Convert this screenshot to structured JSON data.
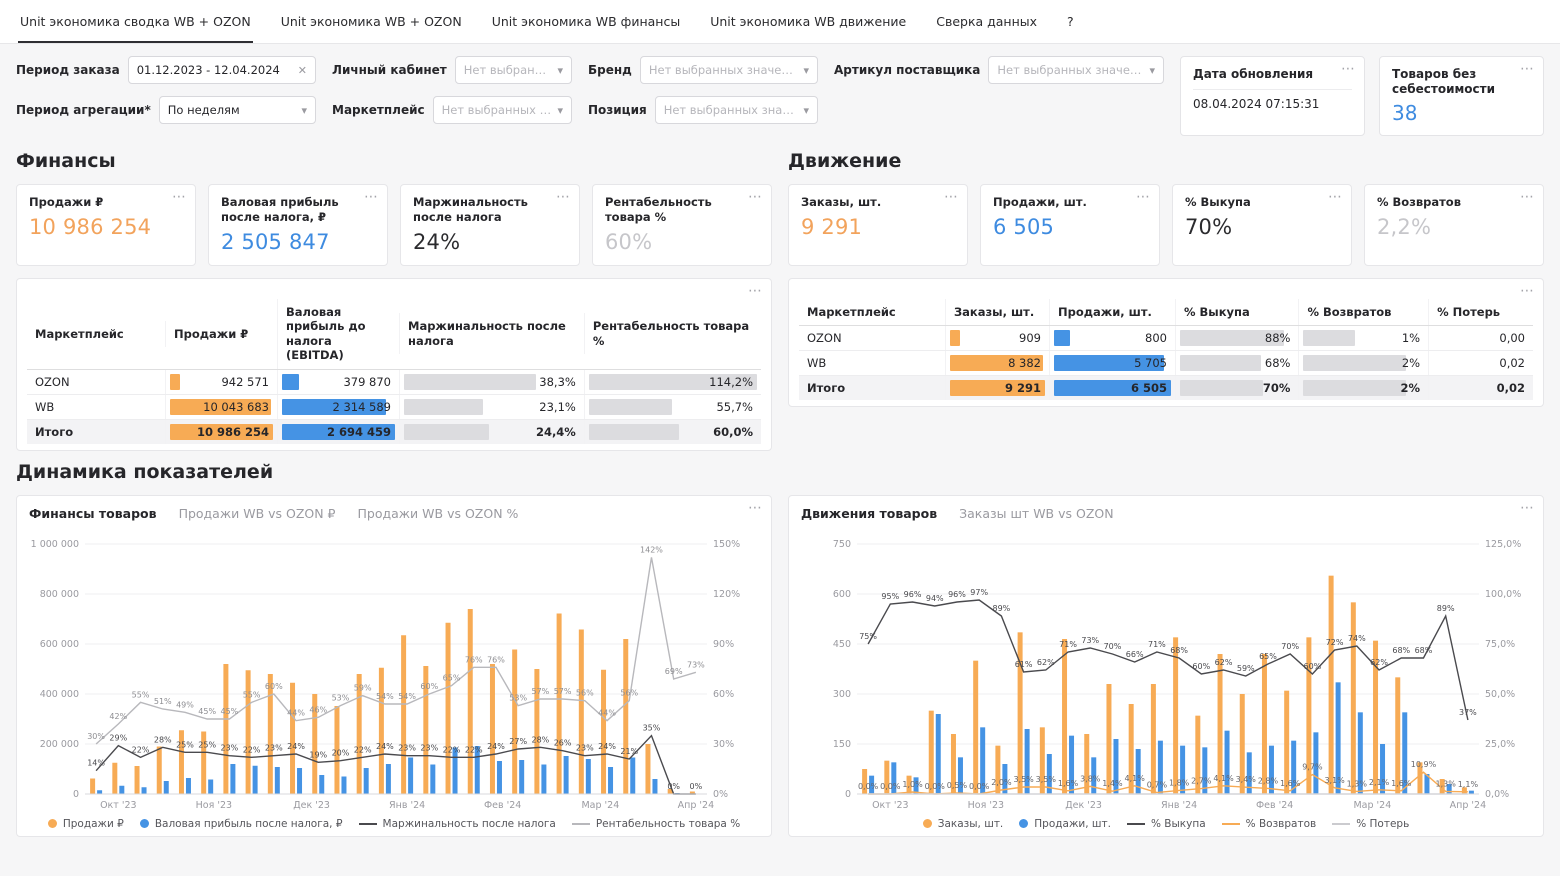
{
  "tabs": {
    "items": [
      {
        "name": "tab-unit-summary-wb-ozon",
        "label": "Unit экономика сводка WB + OZON",
        "active": true
      },
      {
        "name": "tab-unit-wb-ozon",
        "label": "Unit экономика WB + OZON",
        "active": false
      },
      {
        "name": "tab-unit-wb-finance",
        "label": "Unit экономика WB финансы",
        "active": false
      },
      {
        "name": "tab-unit-wb-movement",
        "label": "Unit экономика WB движение",
        "active": false
      },
      {
        "name": "tab-data-check",
        "label": "Сверка данных",
        "active": false
      },
      {
        "name": "tab-help",
        "label": "?",
        "active": false
      }
    ]
  },
  "filters": {
    "rows": [
      [
        {
          "name": "order-period-filter",
          "label": "Период заказа",
          "value": "01.12.2023 - 12.04.2024",
          "clearable": true
        },
        {
          "name": "account-filter",
          "label": "Личный кабинет",
          "placeholder": "Нет выбранных з..."
        },
        {
          "name": "brand-filter",
          "label": "Бренд",
          "placeholder": "Нет выбранных значений"
        },
        {
          "name": "supplier-article-filter",
          "label": "Артикул поставщика",
          "placeholder": "Нет выбранных значений"
        }
      ],
      [
        {
          "name": "aggregation-period-filter",
          "label": "Период агрегации*",
          "value": "По неделям"
        },
        {
          "name": "marketplace-filter",
          "label": "Маркетплейс",
          "placeholder": "Нет выбранных знач..."
        },
        {
          "name": "position-filter",
          "label": "Позиция",
          "placeholder": "Нет выбранных значений"
        }
      ]
    ]
  },
  "info_cards": {
    "update": {
      "title": "Дата обновления",
      "value": "08.04.2024 07:15:31"
    },
    "no_cost": {
      "title": "Товаров без себестоимости",
      "value": "38",
      "color": "#3E8BE0"
    }
  },
  "finance": {
    "title": "Финансы",
    "kpis": [
      {
        "name": "kpi-sales-rub",
        "label": "Продажи ₽",
        "value": "10 986 254",
        "color": "#F2A35C"
      },
      {
        "name": "kpi-gross-profit",
        "label": "Валовая прибыль после налога, ₽",
        "value": "2 505 847",
        "color": "#3E8BE0"
      },
      {
        "name": "kpi-margin",
        "label": "Маржинальность после налога",
        "value": "24%",
        "color": "#2b2b2e"
      },
      {
        "name": "kpi-profitability",
        "label": "Рентабельность товара %",
        "value": "60%",
        "color": "#c6c6ca"
      }
    ],
    "table": {
      "columns": [
        "Маркетплейс",
        "Продажи ₽",
        "Валовая прибыль до налога (EBITDA)",
        "Маржинальность после налога",
        "Рентабельность товара %"
      ],
      "rows": [
        {
          "total": false,
          "cells": [
            {
              "text": "OZON"
            },
            {
              "text": "942 571",
              "bar": 9,
              "color": "orange"
            },
            {
              "text": "379 870",
              "bar": 14,
              "color": "blue"
            },
            {
              "text": "38,3%",
              "bar": 72,
              "color": "gray"
            },
            {
              "text": "114,2%",
              "bar": 97,
              "color": "gray"
            }
          ]
        },
        {
          "total": false,
          "cells": [
            {
              "text": "WB"
            },
            {
              "text": "10 043 683",
              "bar": 91,
              "color": "orange"
            },
            {
              "text": "2 314 589",
              "bar": 86,
              "color": "blue"
            },
            {
              "text": "23,1%",
              "bar": 43,
              "color": "gray"
            },
            {
              "text": "55,7%",
              "bar": 47,
              "color": "gray"
            }
          ]
        },
        {
          "total": true,
          "cells": [
            {
              "text": "Итого"
            },
            {
              "text": "10 986 254",
              "bar": 100,
              "color": "orange"
            },
            {
              "text": "2 694 459",
              "bar": 100,
              "color": "blue"
            },
            {
              "text": "24,4%",
              "bar": 46,
              "color": "gray"
            },
            {
              "text": "60,0%",
              "bar": 51,
              "color": "gray"
            }
          ]
        }
      ]
    }
  },
  "movement": {
    "title": "Движение",
    "kpis": [
      {
        "name": "kpi-orders-units",
        "label": "Заказы, шт.",
        "value": "9 291",
        "color": "#F2A35C"
      },
      {
        "name": "kpi-sales-units",
        "label": "Продажи, шт.",
        "value": "6 505",
        "color": "#3E8BE0"
      },
      {
        "name": "kpi-buyout",
        "label": "% Выкупа",
        "value": "70%",
        "color": "#2b2b2e"
      },
      {
        "name": "kpi-returns",
        "label": "% Возвратов",
        "value": "2,2%",
        "color": "#c6c6ca"
      }
    ],
    "table": {
      "columns": [
        "Маркетплейс",
        "Заказы, шт.",
        "Продажи, шт.",
        "% Выкупа",
        "% Возвратов",
        "% Потерь"
      ],
      "rows": [
        {
          "total": false,
          "cells": [
            {
              "text": "OZON"
            },
            {
              "text": "909",
              "bar": 10,
              "color": "orange"
            },
            {
              "text": "800",
              "bar": 13,
              "color": "blue"
            },
            {
              "text": "88%",
              "bar": 85,
              "color": "gray"
            },
            {
              "text": "1%",
              "bar": 40,
              "color": "gray"
            },
            {
              "text": "0,00"
            }
          ]
        },
        {
          "total": false,
          "cells": [
            {
              "text": "WB"
            },
            {
              "text": "8 382",
              "bar": 90,
              "color": "orange"
            },
            {
              "text": "5 705",
              "bar": 88,
              "color": "blue"
            },
            {
              "text": "68%",
              "bar": 66,
              "color": "gray"
            },
            {
              "text": "2%",
              "bar": 80,
              "color": "gray"
            },
            {
              "text": "0,02"
            }
          ]
        },
        {
          "total": true,
          "cells": [
            {
              "text": "Итого"
            },
            {
              "text": "9 291",
              "bar": 100,
              "color": "orange"
            },
            {
              "text": "6 505",
              "bar": 100,
              "color": "blue"
            },
            {
              "text": "70%",
              "bar": 68,
              "color": "gray"
            },
            {
              "text": "2%",
              "bar": 80,
              "color": "gray"
            },
            {
              "text": "0,02"
            }
          ]
        }
      ]
    }
  },
  "dynamics_title": "Динамика показателей",
  "chart_data": [
    {
      "type": "bar",
      "tabs": [
        "Финансы товаров",
        "Продажи WB vs OZON ₽",
        "Продажи WB vs OZON %"
      ],
      "active_tab": 0,
      "ymax": 1000000,
      "y2max": 150,
      "y_ticks": [
        "0",
        "200 000",
        "400 000",
        "600 000",
        "800 000",
        "1 000 000"
      ],
      "y2_ticks": [
        "0%",
        "30%",
        "60%",
        "90%",
        "120%",
        "150%"
      ],
      "x_labels": [
        "Окт '23",
        "Ноя '23",
        "Дек '23",
        "Янв '24",
        "Фев '24",
        "Мар '24",
        "Апр '24"
      ],
      "x_tick_indices": [
        1,
        5.3,
        9.7,
        14,
        18.3,
        22.7,
        27
      ],
      "series": [
        {
          "name": "Продажи ₽",
          "type": "bar",
          "color": "#F7AB55",
          "axis": "left",
          "values": [
            62000,
            125000,
            112000,
            190000,
            255000,
            250000,
            520000,
            495000,
            480000,
            445000,
            400000,
            352000,
            480000,
            505000,
            635000,
            512000,
            685000,
            740000,
            520000,
            578000,
            500000,
            722000,
            658000,
            497000,
            620000,
            200000,
            20000,
            10000
          ]
        },
        {
          "name": "Валовая прибыль после налога, ₽",
          "type": "bar",
          "color": "#4593E4",
          "axis": "left",
          "values": [
            15000,
            33000,
            27000,
            52000,
            64000,
            58000,
            120000,
            113000,
            108000,
            104000,
            76000,
            70000,
            104000,
            120000,
            146000,
            118000,
            186000,
            192000,
            132000,
            136000,
            118000,
            152000,
            140000,
            108000,
            146000,
            60000,
            4000,
            2000
          ]
        },
        {
          "name": "Маржинальность после налога",
          "type": "line",
          "color": "#4a4a4e",
          "axis": "right",
          "label_color": "#4a4a4e",
          "values": [
            14,
            29,
            22,
            28,
            25,
            25,
            23,
            22,
            23,
            24,
            19,
            20,
            22,
            24,
            23,
            23,
            22,
            22,
            24,
            27,
            28,
            26,
            23,
            24,
            21,
            35,
            0,
            0
          ],
          "labels": [
            "14%",
            "29%",
            "22%",
            "28%",
            "25%",
            "25%",
            "23%",
            "22%",
            "23%",
            "24%",
            "19%",
            "20%",
            "22%",
            "24%",
            "23%",
            "23%",
            "22%",
            "22%",
            "24%",
            "27%",
            "28%",
            "26%",
            "23%",
            "24%",
            "21%",
            "35%",
            "0%",
            "0%"
          ]
        },
        {
          "name": "Рентабельность товара %",
          "type": "line",
          "color": "#b8b8bc",
          "axis": "right",
          "label_color": "#8e8e92",
          "values": [
            30,
            42,
            55,
            51,
            49,
            45,
            45,
            55,
            60,
            44,
            46,
            53,
            59,
            54,
            54,
            60,
            65,
            76,
            76,
            53,
            57,
            57,
            56,
            44,
            56,
            142,
            69,
            73
          ],
          "labels": [
            "30%",
            "42%",
            "55%",
            "51%",
            "49%",
            "45%",
            "45%",
            "55%",
            "60%",
            "44%",
            "46%",
            "53%",
            "59%",
            "54%",
            "54%",
            "60%",
            "65%",
            "76%",
            "76%",
            "53%",
            "57%",
            "57%",
            "56%",
            "44%",
            "56%",
            "142%",
            "69%",
            "73%"
          ]
        }
      ]
    },
    {
      "type": "bar",
      "tabs": [
        "Движения товаров",
        "Заказы шт WB vs OZON"
      ],
      "active_tab": 0,
      "ymax": 750,
      "y2max": 125,
      "y_ticks": [
        "0",
        "150",
        "300",
        "450",
        "600",
        "750"
      ],
      "y2_ticks": [
        "0,0%",
        "25,0%",
        "50,0%",
        "75,0%",
        "100,0%",
        "125,0%"
      ],
      "x_labels": [
        "Окт '23",
        "Ноя '23",
        "Дек '23",
        "Янв '24",
        "Фев '24",
        "Мар '24",
        "Апр '24"
      ],
      "x_tick_indices": [
        1,
        5.3,
        9.7,
        14,
        18.3,
        22.7,
        27
      ],
      "series": [
        {
          "name": "Заказы, шт.",
          "type": "bar",
          "color": "#F7AB55",
          "axis": "left",
          "values": [
            75,
            100,
            55,
            250,
            180,
            400,
            145,
            485,
            200,
            465,
            180,
            330,
            270,
            330,
            470,
            235,
            420,
            300,
            420,
            310,
            470,
            655,
            575,
            460,
            350,
            95,
            45,
            20
          ]
        },
        {
          "name": "Продажи, шт.",
          "type": "bar",
          "color": "#4593E4",
          "axis": "left",
          "values": [
            55,
            95,
            50,
            240,
            110,
            200,
            90,
            195,
            120,
            175,
            110,
            165,
            135,
            160,
            145,
            140,
            190,
            125,
            145,
            160,
            185,
            335,
            245,
            150,
            245,
            60,
            30,
            10
          ]
        },
        {
          "name": "% Выкупа",
          "type": "line",
          "color": "#4a4a4e",
          "axis": "right",
          "label_color": "#4a4a4e",
          "values": [
            75,
            95,
            96,
            94,
            96,
            97,
            89,
            61,
            62,
            71,
            73,
            70,
            66,
            71,
            68,
            60,
            62,
            59,
            65,
            70,
            60,
            72,
            74,
            62,
            68,
            68,
            89,
            37
          ],
          "labels": [
            "75%",
            "95%",
            "96%",
            "94%",
            "96%",
            "97%",
            "89%",
            "61%",
            "62%",
            "71%",
            "73%",
            "70%",
            "66%",
            "71%",
            "68%",
            "60%",
            "62%",
            "59%",
            "65%",
            "70%",
            "60%",
            "72%",
            "74%",
            "62%",
            "68%",
            "68%",
            "89%",
            "37%"
          ]
        },
        {
          "name": "% Возвратов",
          "type": "line",
          "color": "#F7AB55",
          "axis": "right",
          "label_color": "#66666b",
          "values": [
            0,
            0,
            1,
            0,
            0.5,
            0,
            2,
            3.5,
            3.5,
            1.6,
            3.8,
            1.4,
            4.1,
            0.7,
            1.8,
            2.7,
            4.1,
            3.4,
            2.8,
            1.6,
            9.7,
            3.1,
            1.3,
            2.1,
            1.6,
            10.9,
            1.3,
            1.1
          ],
          "labels": [
            "0,0%",
            "0,0%",
            "1,0%",
            "0,0%",
            "0,5%",
            "0,0%",
            "2,0%",
            "3,5%",
            "3,5%",
            "1,6%",
            "3,8%",
            "1,4%",
            "4,1%",
            "0,7%",
            "1,8%",
            "2,7%",
            "4,1%",
            "3,4%",
            "2,8%",
            "1,6%",
            "9,7%",
            "3,1%",
            "1,3%",
            "2,1%",
            "1,6%",
            "10,9%",
            "1,3%",
            "1,1%"
          ]
        },
        {
          "name": "% Потерь",
          "type": "line",
          "color": "#cbcbcf",
          "axis": "right",
          "values": [
            0,
            0,
            0,
            0,
            0,
            0,
            0,
            0,
            0,
            0,
            0,
            0,
            0,
            0,
            0,
            0,
            0,
            0,
            0,
            0,
            0,
            0,
            0,
            0,
            0,
            0,
            0,
            0
          ]
        }
      ]
    }
  ]
}
